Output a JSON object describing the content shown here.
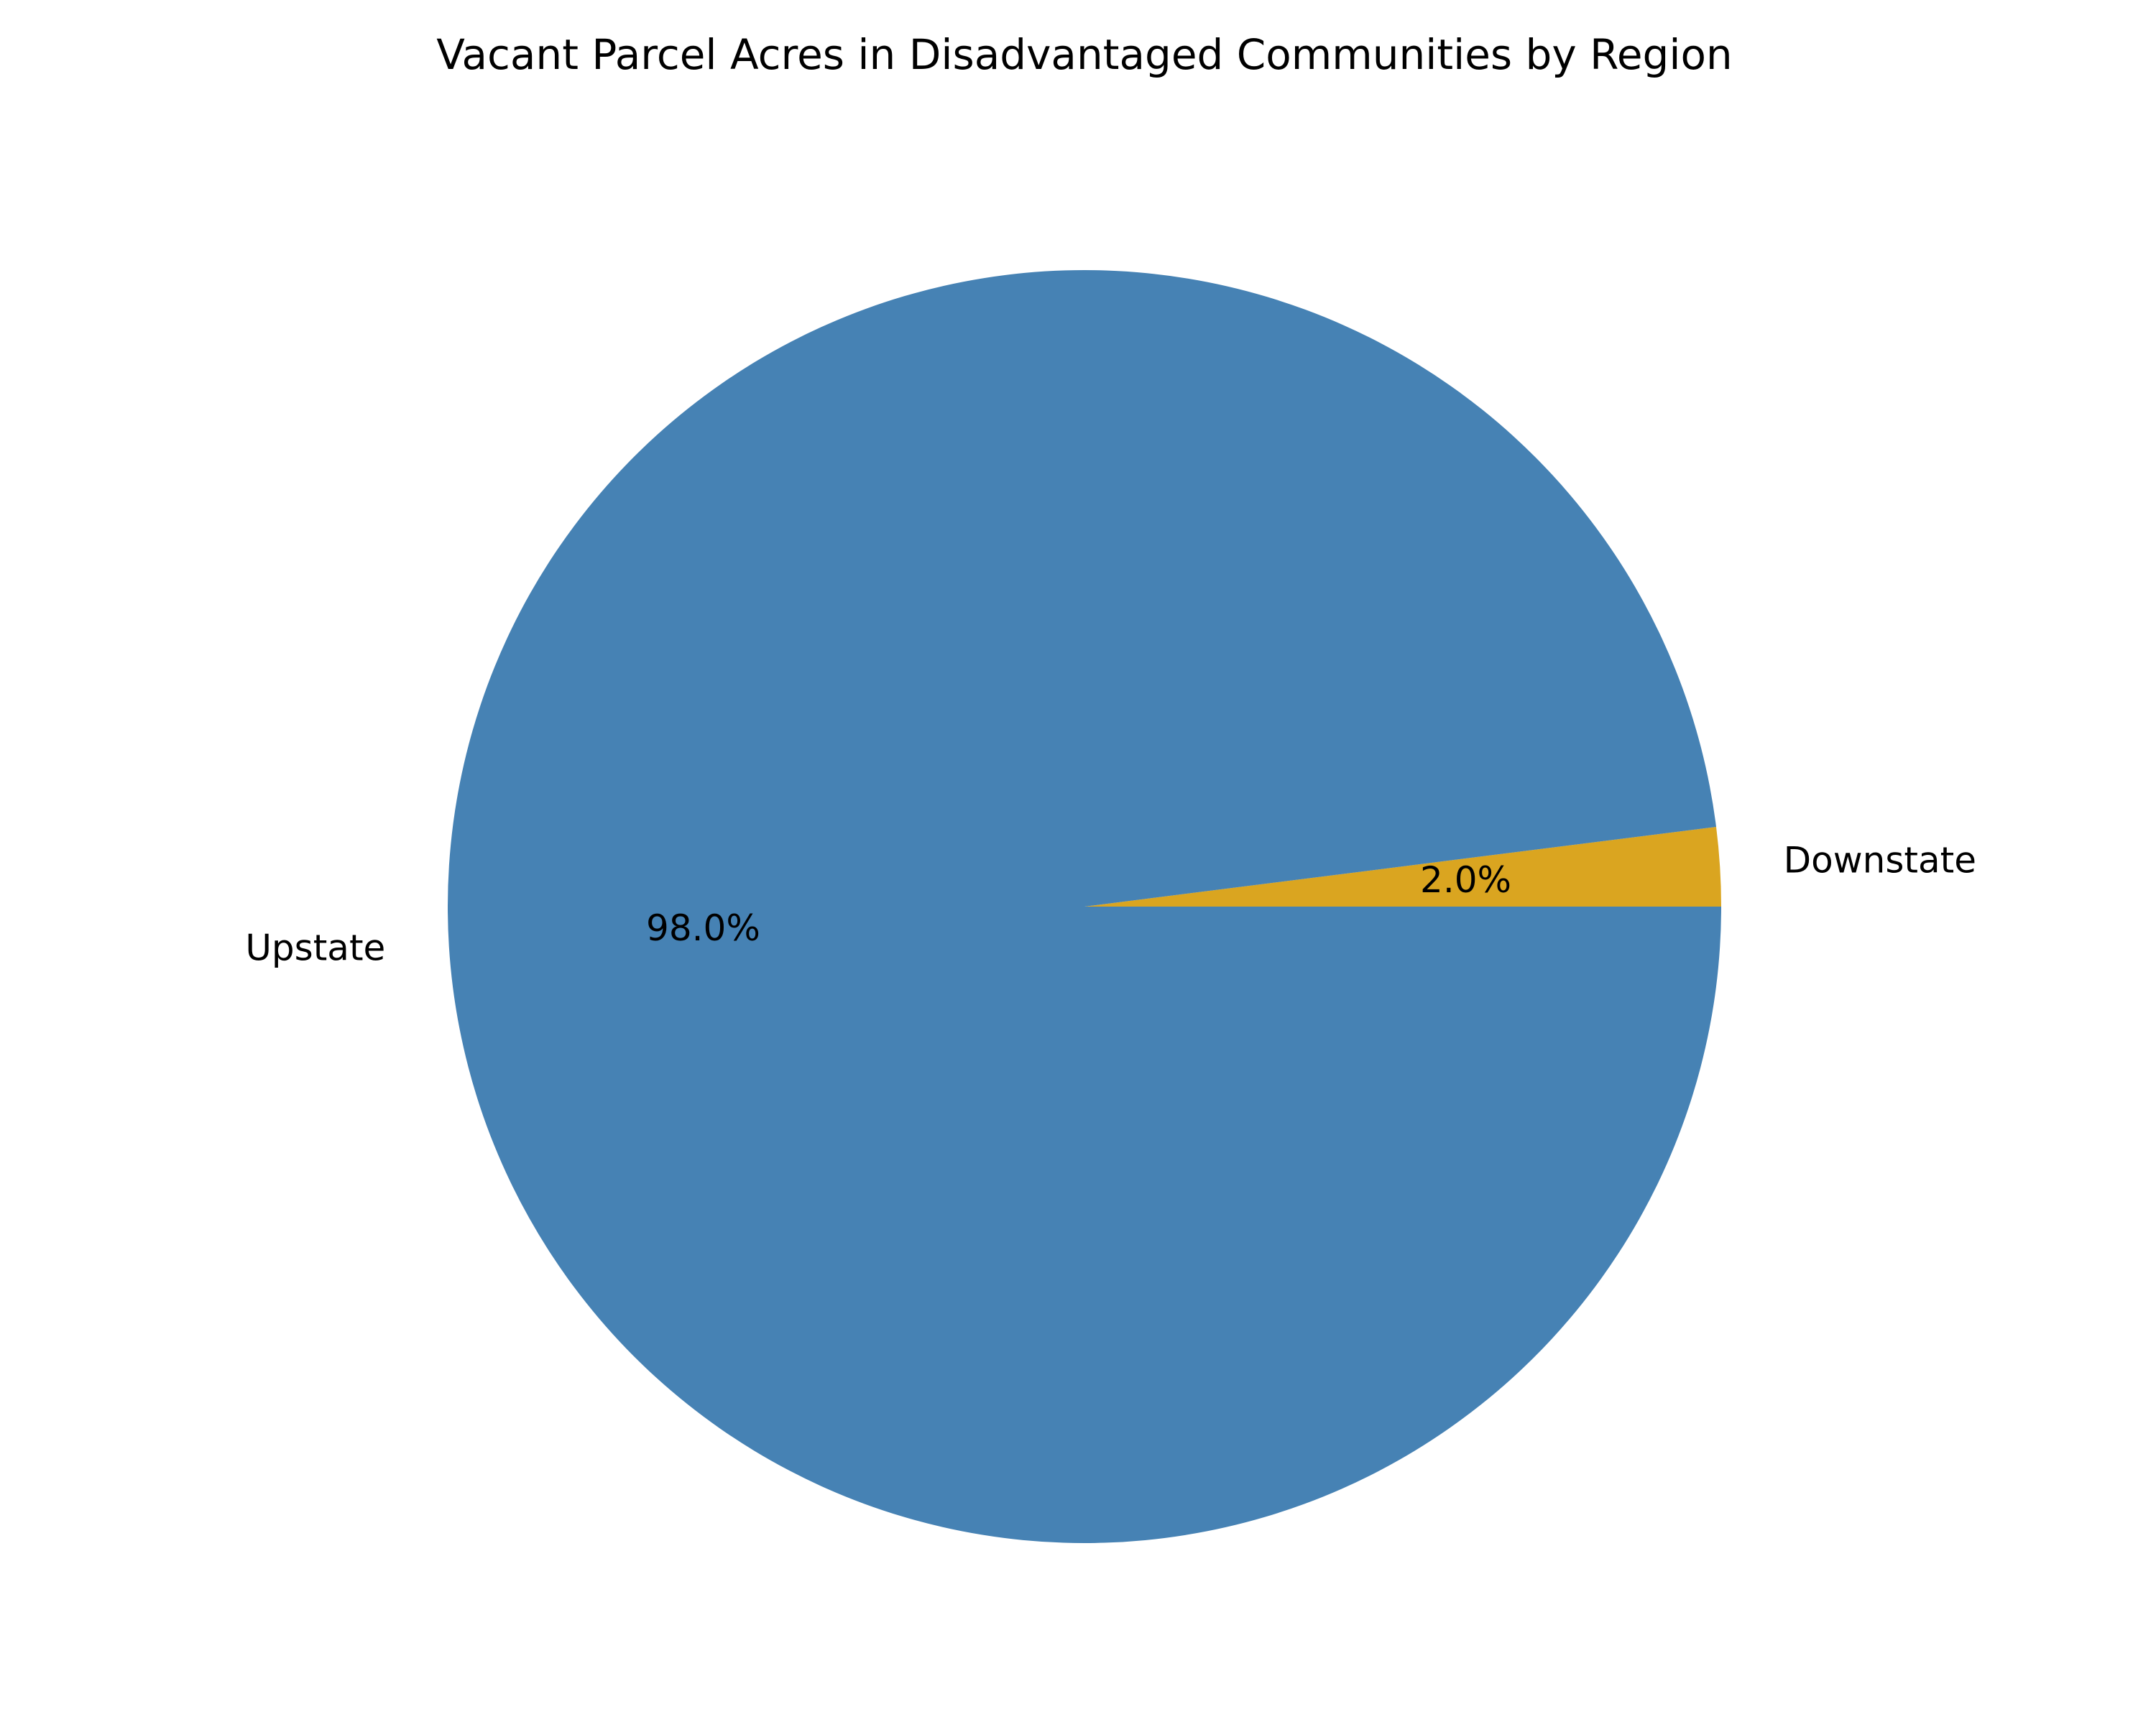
{
  "chart_data": {
    "type": "pie",
    "title": "Vacant Parcel Acres in Disadvantaged Communities by Region",
    "labels": [
      "Downstate",
      "Upstate"
    ],
    "values": [
      2.0,
      98.0
    ],
    "percent_labels": [
      "2.0%",
      "98.0%"
    ],
    "colors": [
      "#DAA520",
      "#4682B4"
    ],
    "start_angle_deg": 0,
    "direction": "counterclockwise",
    "legend": "none"
  }
}
